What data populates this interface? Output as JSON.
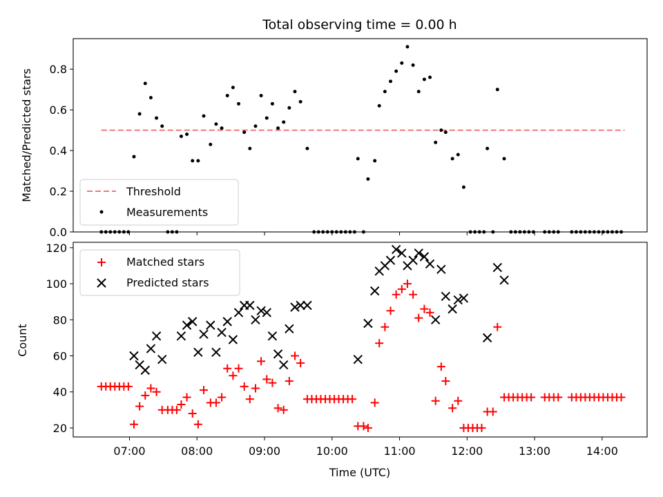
{
  "title": "Total observing time = 0.00 h",
  "chart_data": [
    {
      "type": "scatter",
      "ylabel": "Matched/Predicted stars",
      "xlabel": "",
      "xlim": [
        "06:10",
        "14:40"
      ],
      "ylim": [
        0,
        0.95
      ],
      "yticks": [
        0.0,
        0.2,
        0.4,
        0.6,
        0.8
      ],
      "ytick_labels": [
        "0.0",
        "0.2",
        "0.4",
        "0.6",
        "0.8"
      ],
      "legend_position": "lower-left",
      "threshold": {
        "name": "Threshold",
        "color": "#f07878",
        "style": "dashed",
        "x_range": [
          "06:35",
          "14:20"
        ],
        "y": 0.5
      },
      "series": [
        {
          "name": "Measurements",
          "color": "#000000",
          "marker": "dot",
          "points": [
            [
              "06:35",
              0
            ],
            [
              "06:39",
              0
            ],
            [
              "06:43",
              0
            ],
            [
              "06:47",
              0
            ],
            [
              "06:51",
              0
            ],
            [
              "06:55",
              0
            ],
            [
              "06:59",
              0
            ],
            [
              "07:04",
              0.37
            ],
            [
              "07:09",
              0.58
            ],
            [
              "07:14",
              0.73
            ],
            [
              "07:19",
              0.66
            ],
            [
              "07:24",
              0.56
            ],
            [
              "07:29",
              0.52
            ],
            [
              "07:34",
              0
            ],
            [
              "07:38",
              0
            ],
            [
              "07:42",
              0
            ],
            [
              "07:46",
              0.47
            ],
            [
              "07:51",
              0.48
            ],
            [
              "07:56",
              0.35
            ],
            [
              "08:01",
              0.35
            ],
            [
              "08:06",
              0.57
            ],
            [
              "08:12",
              0.43
            ],
            [
              "08:17",
              0.53
            ],
            [
              "08:22",
              0.51
            ],
            [
              "08:27",
              0.67
            ],
            [
              "08:32",
              0.71
            ],
            [
              "08:37",
              0.63
            ],
            [
              "08:42",
              0.49
            ],
            [
              "08:47",
              0.41
            ],
            [
              "08:52",
              0.52
            ],
            [
              "08:57",
              0.67
            ],
            [
              "09:02",
              0.56
            ],
            [
              "09:07",
              0.63
            ],
            [
              "09:12",
              0.51
            ],
            [
              "09:17",
              0.54
            ],
            [
              "09:22",
              0.61
            ],
            [
              "09:27",
              0.69
            ],
            [
              "09:32",
              0.64
            ],
            [
              "09:38",
              0.41
            ],
            [
              "09:44",
              0
            ],
            [
              "09:48",
              0
            ],
            [
              "09:52",
              0
            ],
            [
              "09:56",
              0
            ],
            [
              "10:00",
              0
            ],
            [
              "10:04",
              0
            ],
            [
              "10:08",
              0
            ],
            [
              "10:12",
              0
            ],
            [
              "10:16",
              0
            ],
            [
              "10:20",
              0
            ],
            [
              "10:28",
              0
            ],
            [
              "10:23",
              0.36
            ],
            [
              "10:32",
              0.26
            ],
            [
              "10:38",
              0.35
            ],
            [
              "10:42",
              0.62
            ],
            [
              "10:47",
              0.69
            ],
            [
              "10:52",
              0.74
            ],
            [
              "10:57",
              0.79
            ],
            [
              "11:02",
              0.83
            ],
            [
              "11:07",
              0.91
            ],
            [
              "11:12",
              0.82
            ],
            [
              "11:17",
              0.69
            ],
            [
              "11:22",
              0.75
            ],
            [
              "11:27",
              0.76
            ],
            [
              "11:32",
              0.44
            ],
            [
              "11:37",
              0.5
            ],
            [
              "11:41",
              0.49
            ],
            [
              "11:47",
              0.36
            ],
            [
              "11:52",
              0.38
            ],
            [
              "11:57",
              0.22
            ],
            [
              "12:03",
              0
            ],
            [
              "12:07",
              0
            ],
            [
              "12:11",
              0
            ],
            [
              "12:15",
              0
            ],
            [
              "12:23",
              0
            ],
            [
              "12:18",
              0.41
            ],
            [
              "12:27",
              0.7
            ],
            [
              "12:33",
              0.36
            ],
            [
              "12:39",
              0
            ],
            [
              "12:43",
              0
            ],
            [
              "12:47",
              0
            ],
            [
              "12:51",
              0
            ],
            [
              "12:55",
              0
            ],
            [
              "12:59",
              0
            ],
            [
              "13:09",
              0
            ],
            [
              "13:13",
              0
            ],
            [
              "13:17",
              0
            ],
            [
              "13:21",
              0
            ],
            [
              "13:33",
              0
            ],
            [
              "13:37",
              0
            ],
            [
              "13:41",
              0
            ],
            [
              "13:45",
              0
            ],
            [
              "13:49",
              0
            ],
            [
              "13:53",
              0
            ],
            [
              "13:57",
              0
            ],
            [
              "14:01",
              0
            ],
            [
              "14:05",
              0
            ],
            [
              "14:09",
              0
            ],
            [
              "14:13",
              0
            ],
            [
              "14:17",
              0
            ]
          ]
        }
      ]
    },
    {
      "type": "scatter",
      "ylabel": "Count",
      "xlabel": "Time (UTC)",
      "xlim": [
        "06:10",
        "14:40"
      ],
      "ylim": [
        15,
        123
      ],
      "xticks": [
        "07:00",
        "08:00",
        "09:00",
        "10:00",
        "11:00",
        "12:00",
        "13:00",
        "14:00"
      ],
      "yticks": [
        20,
        40,
        60,
        80,
        100,
        120
      ],
      "ytick_labels": [
        "20",
        "40",
        "60",
        "80",
        "100",
        "120"
      ],
      "legend_position": "upper-left",
      "series": [
        {
          "name": "Matched stars",
          "color": "#ff0000",
          "marker": "plus",
          "points": [
            [
              "06:35",
              43
            ],
            [
              "06:39",
              43
            ],
            [
              "06:43",
              43
            ],
            [
              "06:47",
              43
            ],
            [
              "06:51",
              43
            ],
            [
              "06:55",
              43
            ],
            [
              "06:59",
              43
            ],
            [
              "07:04",
              22
            ],
            [
              "07:09",
              32
            ],
            [
              "07:14",
              38
            ],
            [
              "07:19",
              42
            ],
            [
              "07:24",
              40
            ],
            [
              "07:29",
              30
            ],
            [
              "07:34",
              30
            ],
            [
              "07:38",
              30
            ],
            [
              "07:42",
              30
            ],
            [
              "07:46",
              33
            ],
            [
              "07:51",
              37
            ],
            [
              "07:56",
              28
            ],
            [
              "08:01",
              22
            ],
            [
              "08:06",
              41
            ],
            [
              "08:12",
              34
            ],
            [
              "08:17",
              34
            ],
            [
              "08:22",
              37
            ],
            [
              "08:27",
              53
            ],
            [
              "08:32",
              49
            ],
            [
              "08:37",
              53
            ],
            [
              "08:42",
              43
            ],
            [
              "08:47",
              36
            ],
            [
              "08:52",
              42
            ],
            [
              "08:57",
              57
            ],
            [
              "09:02",
              47
            ],
            [
              "09:07",
              45
            ],
            [
              "09:12",
              31
            ],
            [
              "09:17",
              30
            ],
            [
              "09:22",
              46
            ],
            [
              "09:27",
              60
            ],
            [
              "09:32",
              56
            ],
            [
              "09:38",
              36
            ],
            [
              "09:42",
              36
            ],
            [
              "09:46",
              36
            ],
            [
              "09:50",
              36
            ],
            [
              "09:54",
              36
            ],
            [
              "09:58",
              36
            ],
            [
              "10:02",
              36
            ],
            [
              "10:06",
              36
            ],
            [
              "10:10",
              36
            ],
            [
              "10:14",
              36
            ],
            [
              "10:18",
              36
            ],
            [
              "10:23",
              21
            ],
            [
              "10:28",
              21
            ],
            [
              "10:32",
              20
            ],
            [
              "10:38",
              34
            ],
            [
              "10:42",
              67
            ],
            [
              "10:47",
              76
            ],
            [
              "10:52",
              85
            ],
            [
              "10:57",
              94
            ],
            [
              "11:02",
              97
            ],
            [
              "11:07",
              100
            ],
            [
              "11:12",
              94
            ],
            [
              "11:17",
              81
            ],
            [
              "11:22",
              86
            ],
            [
              "11:27",
              84
            ],
            [
              "11:32",
              35
            ],
            [
              "11:37",
              54
            ],
            [
              "11:41",
              46
            ],
            [
              "11:47",
              31
            ],
            [
              "11:52",
              35
            ],
            [
              "11:57",
              20
            ],
            [
              "12:01",
              20
            ],
            [
              "12:05",
              20
            ],
            [
              "12:09",
              20
            ],
            [
              "12:13",
              20
            ],
            [
              "12:18",
              29
            ],
            [
              "12:23",
              29
            ],
            [
              "12:27",
              76
            ],
            [
              "12:33",
              37
            ],
            [
              "12:37",
              37
            ],
            [
              "12:41",
              37
            ],
            [
              "12:45",
              37
            ],
            [
              "12:49",
              37
            ],
            [
              "12:53",
              37
            ],
            [
              "12:57",
              37
            ],
            [
              "13:09",
              37
            ],
            [
              "13:13",
              37
            ],
            [
              "13:17",
              37
            ],
            [
              "13:21",
              37
            ],
            [
              "13:33",
              37
            ],
            [
              "13:37",
              37
            ],
            [
              "13:41",
              37
            ],
            [
              "13:45",
              37
            ],
            [
              "13:49",
              37
            ],
            [
              "13:53",
              37
            ],
            [
              "13:57",
              37
            ],
            [
              "14:01",
              37
            ],
            [
              "14:05",
              37
            ],
            [
              "14:09",
              37
            ],
            [
              "14:13",
              37
            ],
            [
              "14:17",
              37
            ]
          ]
        },
        {
          "name": "Predicted stars",
          "color": "#000000",
          "marker": "x",
          "points": [
            [
              "07:04",
              60
            ],
            [
              "07:09",
              55
            ],
            [
              "07:14",
              52
            ],
            [
              "07:19",
              64
            ],
            [
              "07:24",
              71
            ],
            [
              "07:29",
              58
            ],
            [
              "07:46",
              71
            ],
            [
              "07:51",
              77
            ],
            [
              "07:56",
              79
            ],
            [
              "08:01",
              62
            ],
            [
              "08:06",
              72
            ],
            [
              "08:12",
              77
            ],
            [
              "08:17",
              62
            ],
            [
              "08:22",
              73
            ],
            [
              "08:27",
              79
            ],
            [
              "08:32",
              69
            ],
            [
              "08:37",
              84
            ],
            [
              "08:42",
              88
            ],
            [
              "08:47",
              88
            ],
            [
              "08:52",
              80
            ],
            [
              "08:57",
              85
            ],
            [
              "09:02",
              84
            ],
            [
              "09:07",
              71
            ],
            [
              "09:12",
              61
            ],
            [
              "09:17",
              55
            ],
            [
              "09:22",
              75
            ],
            [
              "09:27",
              87
            ],
            [
              "09:32",
              88
            ],
            [
              "09:38",
              88
            ],
            [
              "10:23",
              58
            ],
            [
              "10:32",
              78
            ],
            [
              "10:38",
              96
            ],
            [
              "10:42",
              107
            ],
            [
              "10:47",
              110
            ],
            [
              "10:52",
              113
            ],
            [
              "10:57",
              119
            ],
            [
              "11:02",
              117
            ],
            [
              "11:07",
              110
            ],
            [
              "11:12",
              113
            ],
            [
              "11:17",
              117
            ],
            [
              "11:22",
              115
            ],
            [
              "11:27",
              111
            ],
            [
              "11:32",
              80
            ],
            [
              "11:37",
              108
            ],
            [
              "11:41",
              93
            ],
            [
              "11:47",
              86
            ],
            [
              "11:52",
              91
            ],
            [
              "11:57",
              92
            ],
            [
              "12:18",
              70
            ],
            [
              "12:27",
              109
            ],
            [
              "12:33",
              102
            ]
          ]
        }
      ]
    }
  ]
}
